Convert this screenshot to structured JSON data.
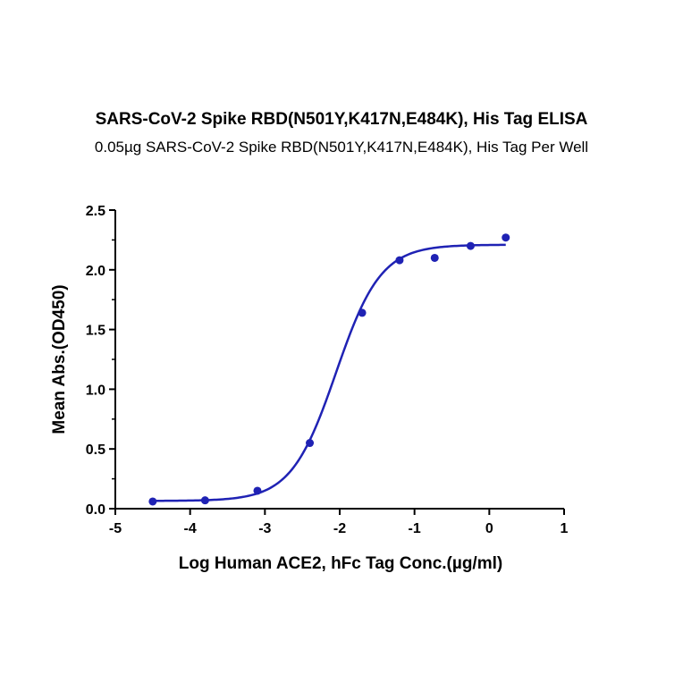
{
  "chart_data": {
    "type": "scatter",
    "title": "SARS-CoV-2 Spike RBD(N501Y,K417N,E484K), His Tag ELISA",
    "subtitle": "0.05µg SARS-CoV-2 Spike RBD(N501Y,K417N,E484K), His Tag Per Well",
    "xlabel": "Log Human ACE2, hFc Tag Conc.(µg/ml)",
    "ylabel": "Mean Abs.(OD450)",
    "xlim": [
      -5,
      1
    ],
    "ylim": [
      0,
      2.5
    ],
    "xticks": [
      "-5",
      "-4",
      "-3",
      "-2",
      "-1",
      "0",
      "1"
    ],
    "yticks": [
      "0.0",
      "0.5",
      "1.0",
      "1.5",
      "2.0",
      "2.5"
    ],
    "grid": false,
    "series": [
      {
        "points": [
          {
            "x": -4.5,
            "y": 0.06
          },
          {
            "x": -3.8,
            "y": 0.07
          },
          {
            "x": -3.1,
            "y": 0.15
          },
          {
            "x": -2.4,
            "y": 0.55
          },
          {
            "x": -1.7,
            "y": 1.64
          },
          {
            "x": -1.2,
            "y": 2.08
          },
          {
            "x": -0.73,
            "y": 2.1
          },
          {
            "x": -0.25,
            "y": 2.2
          },
          {
            "x": 0.22,
            "y": 2.27
          }
        ],
        "fit": {
          "model": "4PL",
          "bottom": 0.065,
          "top": 2.21,
          "logEC50": -2.05,
          "hill": 1.45,
          "x_range": [
            -4.5,
            0.22
          ]
        }
      }
    ],
    "colors": {
      "series": "#1f22b4",
      "axis": "#000000"
    }
  }
}
